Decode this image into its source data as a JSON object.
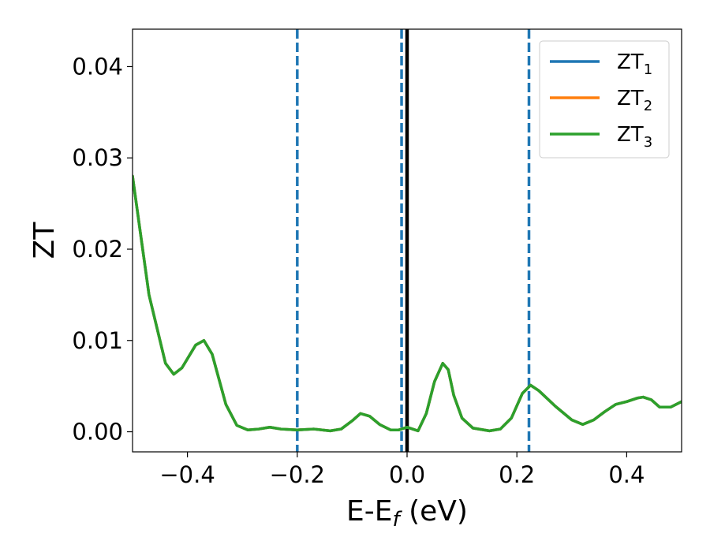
{
  "chart_data": {
    "type": "line",
    "title": "",
    "xlabel": {
      "base": "E-E",
      "sub": "f",
      "suffix": " (eV)"
    },
    "ylabel": "ZT",
    "xlim": [
      -0.5,
      0.5
    ],
    "ylim": [
      -0.0022,
      0.0441
    ],
    "xticks": [
      -0.4,
      -0.2,
      0.0,
      0.2,
      0.4
    ],
    "xtick_labels": [
      "−0.4",
      "−0.2",
      "0.0",
      "0.2",
      "0.4"
    ],
    "yticks": [
      0.0,
      0.01,
      0.02,
      0.03,
      0.04
    ],
    "ytick_labels": [
      "0.00",
      "0.01",
      "0.02",
      "0.03",
      "0.04"
    ],
    "grid": false,
    "legend_position": "top-right",
    "vlines": [
      {
        "x": -0.2,
        "style": "dashed",
        "color": "#1f77b4"
      },
      {
        "x": -0.01,
        "style": "dashed",
        "color": "#1f77b4"
      },
      {
        "x": 0.0,
        "style": "solid",
        "color": "#000000"
      },
      {
        "x": 0.222,
        "style": "dashed",
        "color": "#1f77b4"
      }
    ],
    "series": [
      {
        "name": {
          "base": "ZT",
          "sub": "1"
        },
        "color": "#1f77b4",
        "x": [
          -0.5,
          -0.47,
          -0.44,
          -0.425,
          -0.41,
          -0.385,
          -0.37,
          -0.355,
          -0.33,
          -0.31,
          -0.29,
          -0.27,
          -0.25,
          -0.23,
          -0.2,
          -0.17,
          -0.14,
          -0.12,
          -0.1,
          -0.085,
          -0.068,
          -0.05,
          -0.03,
          -0.015,
          0.0,
          0.01,
          0.02,
          0.035,
          0.05,
          0.065,
          0.075,
          0.085,
          0.1,
          0.12,
          0.15,
          0.17,
          0.19,
          0.21,
          0.225,
          0.24,
          0.27,
          0.3,
          0.32,
          0.34,
          0.36,
          0.38,
          0.4,
          0.42,
          0.43,
          0.445,
          0.46,
          0.48,
          0.5
        ],
        "y": [
          0.028,
          0.015,
          0.0075,
          0.0063,
          0.007,
          0.0095,
          0.01,
          0.0085,
          0.003,
          0.0007,
          0.0002,
          0.0003,
          0.0005,
          0.0003,
          0.0002,
          0.0003,
          0.0001,
          0.0003,
          0.0012,
          0.002,
          0.0017,
          0.0008,
          0.0002,
          0.0002,
          0.0005,
          0.0003,
          0.0001,
          0.002,
          0.0055,
          0.0075,
          0.0068,
          0.004,
          0.0015,
          0.0004,
          0.0001,
          0.0003,
          0.0015,
          0.0042,
          0.0051,
          0.0045,
          0.0028,
          0.0013,
          0.0008,
          0.0013,
          0.0022,
          0.003,
          0.0033,
          0.0037,
          0.0038,
          0.0035,
          0.0027,
          0.0027,
          0.0033
        ]
      },
      {
        "name": {
          "base": "ZT",
          "sub": "2"
        },
        "color": "#ff7f0e",
        "x": [
          -0.5,
          -0.47,
          -0.44,
          -0.425,
          -0.41,
          -0.385,
          -0.37,
          -0.355,
          -0.33,
          -0.31,
          -0.29,
          -0.27,
          -0.25,
          -0.23,
          -0.2,
          -0.17,
          -0.14,
          -0.12,
          -0.1,
          -0.085,
          -0.068,
          -0.05,
          -0.03,
          -0.015,
          0.0,
          0.01,
          0.02,
          0.035,
          0.05,
          0.065,
          0.075,
          0.085,
          0.1,
          0.12,
          0.15,
          0.17,
          0.19,
          0.21,
          0.225,
          0.24,
          0.27,
          0.3,
          0.32,
          0.34,
          0.36,
          0.38,
          0.4,
          0.42,
          0.43,
          0.445,
          0.46,
          0.48,
          0.5
        ],
        "y": [
          0.028,
          0.015,
          0.0075,
          0.0063,
          0.007,
          0.0095,
          0.01,
          0.0085,
          0.003,
          0.0007,
          0.0002,
          0.0003,
          0.0005,
          0.0003,
          0.0002,
          0.0003,
          0.0001,
          0.0003,
          0.0012,
          0.002,
          0.0017,
          0.0008,
          0.0002,
          0.0002,
          0.0005,
          0.0003,
          0.0001,
          0.002,
          0.0055,
          0.0075,
          0.0068,
          0.004,
          0.0015,
          0.0004,
          0.0001,
          0.0003,
          0.0015,
          0.0042,
          0.0051,
          0.0045,
          0.0028,
          0.0013,
          0.0008,
          0.0013,
          0.0022,
          0.003,
          0.0033,
          0.0037,
          0.0038,
          0.0035,
          0.0027,
          0.0027,
          0.0033
        ]
      },
      {
        "name": {
          "base": "ZT",
          "sub": "3"
        },
        "color": "#2ca02c",
        "x": [
          -0.5,
          -0.47,
          -0.44,
          -0.425,
          -0.41,
          -0.385,
          -0.37,
          -0.355,
          -0.33,
          -0.31,
          -0.29,
          -0.27,
          -0.25,
          -0.23,
          -0.2,
          -0.17,
          -0.14,
          -0.12,
          -0.1,
          -0.085,
          -0.068,
          -0.05,
          -0.03,
          -0.015,
          0.0,
          0.01,
          0.02,
          0.035,
          0.05,
          0.065,
          0.075,
          0.085,
          0.1,
          0.12,
          0.15,
          0.17,
          0.19,
          0.21,
          0.225,
          0.24,
          0.27,
          0.3,
          0.32,
          0.34,
          0.36,
          0.38,
          0.4,
          0.42,
          0.43,
          0.445,
          0.46,
          0.48,
          0.5
        ],
        "y": [
          0.028,
          0.015,
          0.0075,
          0.0063,
          0.007,
          0.0095,
          0.01,
          0.0085,
          0.003,
          0.0007,
          0.0002,
          0.0003,
          0.0005,
          0.0003,
          0.0002,
          0.0003,
          0.0001,
          0.0003,
          0.0012,
          0.002,
          0.0017,
          0.0008,
          0.0002,
          0.0002,
          0.0005,
          0.0003,
          0.0001,
          0.002,
          0.0055,
          0.0075,
          0.0068,
          0.004,
          0.0015,
          0.0004,
          0.0001,
          0.0003,
          0.0015,
          0.0042,
          0.0051,
          0.0045,
          0.0028,
          0.0013,
          0.0008,
          0.0013,
          0.0022,
          0.003,
          0.0033,
          0.0037,
          0.0038,
          0.0035,
          0.0027,
          0.0027,
          0.0033
        ]
      }
    ]
  }
}
